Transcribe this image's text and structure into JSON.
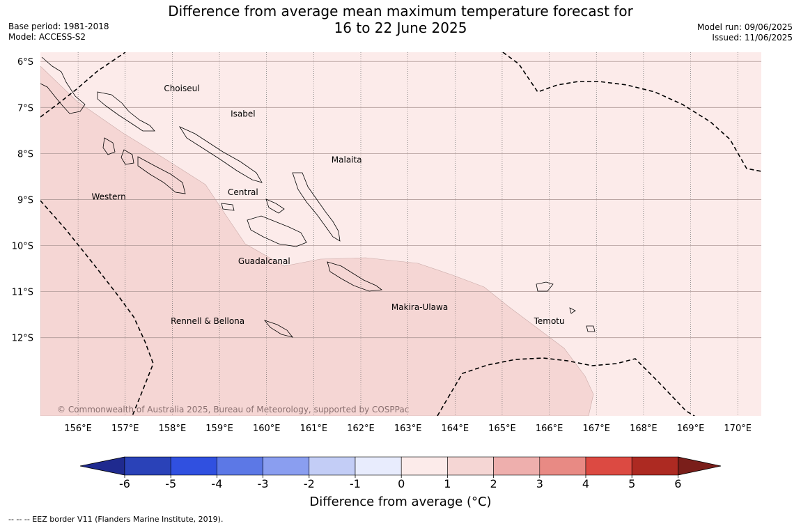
{
  "header": {
    "title_line1": "Difference from average mean maximum temperature forecast for",
    "title_line2": "16 to 22 June 2025",
    "base_period": "Base period: 1981-2018",
    "model": "Model: ACCESS-S2",
    "model_run": "Model run: 09/06/2025",
    "issued": "Issued: 11/06/2025"
  },
  "map": {
    "lon_range": [
      155.2,
      170.5
    ],
    "lat_range": [
      -13.7,
      -5.8
    ],
    "lon_ticks": [
      {
        "value": 156,
        "label": "156°E"
      },
      {
        "value": 157,
        "label": "157°E"
      },
      {
        "value": 158,
        "label": "158°E"
      },
      {
        "value": 159,
        "label": "159°E"
      },
      {
        "value": 160,
        "label": "160°E"
      },
      {
        "value": 161,
        "label": "161°E"
      },
      {
        "value": 162,
        "label": "162°E"
      },
      {
        "value": 163,
        "label": "163°E"
      },
      {
        "value": 164,
        "label": "164°E"
      },
      {
        "value": 165,
        "label": "165°E"
      },
      {
        "value": 166,
        "label": "166°E"
      },
      {
        "value": 167,
        "label": "167°E"
      },
      {
        "value": 168,
        "label": "168°E"
      },
      {
        "value": 169,
        "label": "169°E"
      },
      {
        "value": 170,
        "label": "170°E"
      }
    ],
    "lat_ticks": [
      {
        "value": -6,
        "label": "6°S"
      },
      {
        "value": -7,
        "label": "7°S"
      },
      {
        "value": -8,
        "label": "8°S"
      },
      {
        "value": -9,
        "label": "9°S"
      },
      {
        "value": -10,
        "label": "10°S"
      },
      {
        "value": -11,
        "label": "11°S"
      },
      {
        "value": -12,
        "label": "12°S"
      }
    ],
    "provinces": [
      {
        "name": "Choiseul",
        "lon": 158.2,
        "lat": -6.65
      },
      {
        "name": "Isabel",
        "lon": 159.5,
        "lat": -7.2
      },
      {
        "name": "Malaita",
        "lon": 161.7,
        "lat": -8.2
      },
      {
        "name": "Western",
        "lon": 156.65,
        "lat": -9.0
      },
      {
        "name": "Central",
        "lon": 159.5,
        "lat": -8.9
      },
      {
        "name": "Guadalcanal",
        "lon": 159.95,
        "lat": -10.4
      },
      {
        "name": "Makira-Ulawa",
        "lon": 163.25,
        "lat": -11.4
      },
      {
        "name": "Rennell & Bellona",
        "lon": 158.75,
        "lat": -11.7
      },
      {
        "name": "Temotu",
        "lon": 166.0,
        "lat": -11.7
      }
    ],
    "zone_colors": {
      "zero_to_one": "#fcebea",
      "one_to_two": "#f5d6d4"
    },
    "copyright": "© Commonwealth of Australia 2025, Bureau of Meteorology, supported by COSPPac"
  },
  "colorbar": {
    "title": "Difference from average (°C)",
    "ticks": [
      "-6",
      "-5",
      "-4",
      "-3",
      "-2",
      "-1",
      "0",
      "1",
      "2",
      "3",
      "4",
      "5",
      "6"
    ],
    "colors": [
      "#1f2a8f",
      "#2a42b8",
      "#3050e0",
      "#5c78e6",
      "#8a9ef0",
      "#c3cdf6",
      "#e8ecfd",
      "#fcebea",
      "#f5d6d4",
      "#eeafad",
      "#e88a84",
      "#dc4a42",
      "#ad2a22",
      "#7a1e1a"
    ]
  },
  "footer": "-- -- -- EEZ border V11 (Flanders Marine Institute, 2019)."
}
